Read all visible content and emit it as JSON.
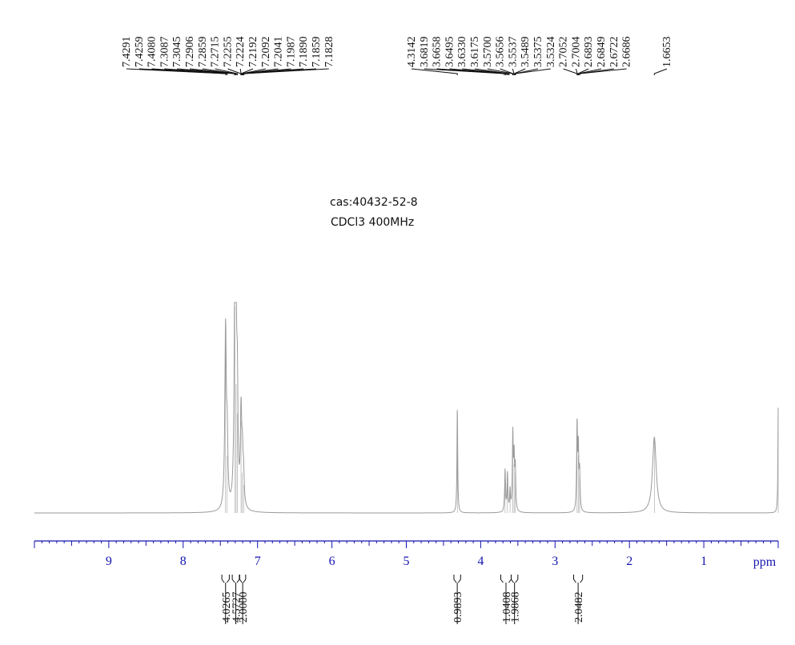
{
  "title_lines": [
    "cas:40432-52-8",
    "CDCl3 400MHz"
  ],
  "chart_data": {
    "type": "line",
    "xlabel": "ppm",
    "xlim": [
      10.0,
      0.0
    ],
    "x_ticks": [
      9,
      8,
      7,
      6,
      5,
      4,
      3,
      2,
      1
    ],
    "x_tick_labels": [
      "9",
      "8",
      "7",
      "6",
      "5",
      "4",
      "3",
      "2",
      "1"
    ],
    "peak_label_groups": [
      [
        "7.4291",
        "7.4259",
        "7.4080",
        "7.3087",
        "7.3045",
        "7.2906",
        "7.2859",
        "7.2715",
        "7.2255",
        "7.2224",
        "7.2192",
        "7.2092",
        "7.2041",
        "7.1987",
        "7.1890",
        "7.1859",
        "7.1828"
      ],
      [
        "4.3142",
        "3.6819",
        "3.6658",
        "3.6495",
        "3.6330",
        "3.6175",
        "3.5700",
        "3.5656",
        "3.5537",
        "3.5489",
        "3.5375",
        "3.5324",
        "2.7052",
        "2.7004",
        "2.6893",
        "2.6849",
        "2.6722",
        "2.6686"
      ],
      [
        "1.6653"
      ]
    ],
    "peaks": [
      {
        "ppm": 7.43,
        "height": 0.86,
        "width": 0.012
      },
      {
        "ppm": 7.408,
        "height": 0.28,
        "width": 0.01
      },
      {
        "ppm": 7.305,
        "height": 0.99,
        "width": 0.012
      },
      {
        "ppm": 7.288,
        "height": 0.62,
        "width": 0.01
      },
      {
        "ppm": 7.272,
        "height": 0.48,
        "width": 0.01
      },
      {
        "ppm": 7.222,
        "height": 0.44,
        "width": 0.011
      },
      {
        "ppm": 7.204,
        "height": 0.2,
        "width": 0.01
      },
      {
        "ppm": 7.188,
        "height": 0.14,
        "width": 0.01
      },
      {
        "ppm": 4.314,
        "height": 0.5,
        "width": 0.006
      },
      {
        "ppm": 3.672,
        "height": 0.2,
        "width": 0.007
      },
      {
        "ppm": 3.64,
        "height": 0.18,
        "width": 0.007
      },
      {
        "ppm": 3.605,
        "height": 0.1,
        "width": 0.007
      },
      {
        "ppm": 3.568,
        "height": 0.36,
        "width": 0.007
      },
      {
        "ppm": 3.551,
        "height": 0.24,
        "width": 0.007
      },
      {
        "ppm": 3.535,
        "height": 0.2,
        "width": 0.007
      },
      {
        "ppm": 2.704,
        "height": 0.41,
        "width": 0.007
      },
      {
        "ppm": 2.687,
        "height": 0.28,
        "width": 0.007
      },
      {
        "ppm": 2.67,
        "height": 0.18,
        "width": 0.007
      },
      {
        "ppm": 1.665,
        "height": 0.36,
        "width": 0.03
      },
      {
        "ppm": 0.0,
        "height": 0.5,
        "width": 0.005
      }
    ],
    "integrals": [
      {
        "from": 7.48,
        "to": 7.38,
        "value": "4.0265"
      },
      {
        "from": 7.34,
        "to": 7.245,
        "value": "4.5727"
      },
      {
        "from": 7.24,
        "to": 7.16,
        "value": "2.0000"
      },
      {
        "from": 4.36,
        "to": 4.27,
        "value": "0.9893"
      },
      {
        "from": 3.73,
        "to": 3.59,
        "value": "1.0408"
      },
      {
        "from": 3.59,
        "to": 3.5,
        "value": "1.9868"
      },
      {
        "from": 2.75,
        "to": 2.63,
        "value": "2.0482"
      }
    ]
  }
}
